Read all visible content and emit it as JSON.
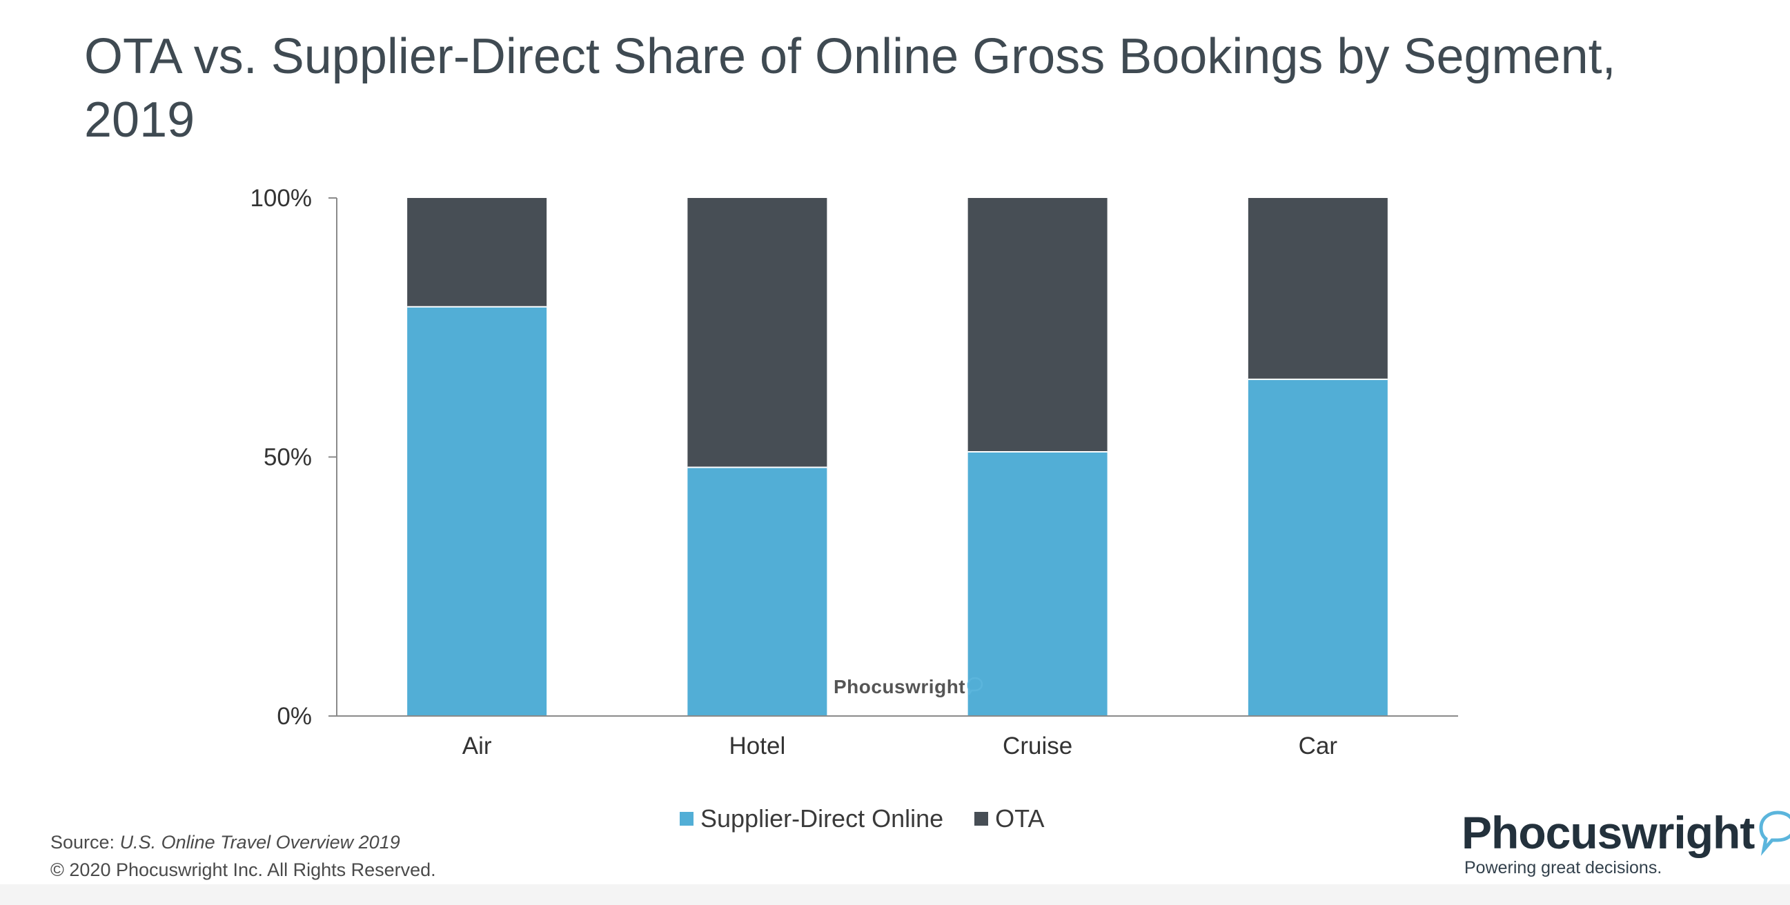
{
  "title": "OTA vs. Supplier-Direct Share of Online Gross Bookings by Segment, 2019",
  "chart_data": {
    "type": "bar",
    "stacked": true,
    "categories": [
      "Air",
      "Hotel",
      "Cruise",
      "Car"
    ],
    "series": [
      {
        "name": "Supplier-Direct Online",
        "values": [
          79,
          48,
          51,
          65
        ],
        "color": "#52aed6"
      },
      {
        "name": "OTA",
        "values": [
          21,
          52,
          49,
          35
        ],
        "color": "#474e55"
      }
    ],
    "yticks": [
      "0%",
      "50%",
      "100%"
    ],
    "ylim": [
      0,
      100
    ],
    "grid": false,
    "legend_position": "bottom-center"
  },
  "legend": {
    "items": [
      {
        "label": "Supplier-Direct Online",
        "color": "#52aed6"
      },
      {
        "label": "OTA",
        "color": "#474e55"
      }
    ]
  },
  "footer": {
    "source_prefix": "Source: ",
    "source_title": "U.S. Online Travel Overview 2019",
    "copyright": "© 2020  Phocuswright Inc. All Rights Reserved."
  },
  "watermark": {
    "text": "Phocuswright"
  },
  "logo": {
    "name": "Phocuswright",
    "tagline": "Powering great decisions."
  }
}
